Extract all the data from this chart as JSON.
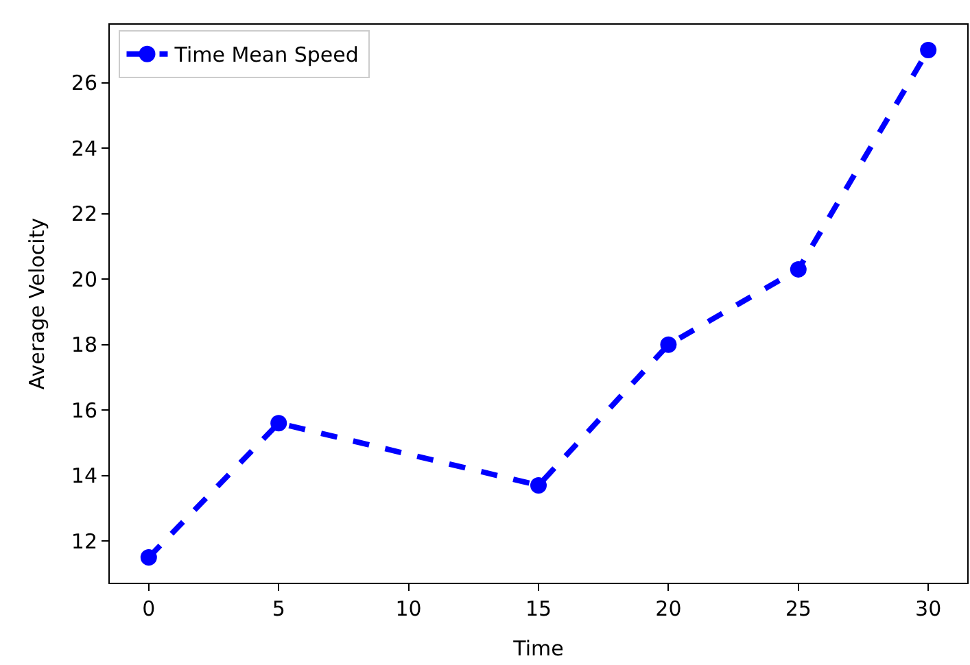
{
  "chart_data": {
    "type": "line",
    "xlabel": "Time",
    "ylabel": "Average Velocity",
    "x": [
      0,
      5,
      15,
      20,
      25,
      30
    ],
    "series": [
      {
        "name": "Time Mean Speed",
        "color": "#0000ff",
        "values": [
          11.5,
          15.6,
          13.7,
          18.0,
          20.3,
          27.0
        ]
      }
    ],
    "xlim": [
      -1.5,
      31.5
    ],
    "xticks": [
      0,
      5,
      10,
      15,
      20,
      25,
      30
    ],
    "ylim": [
      10.725,
      27.775
    ],
    "yticks": [
      12,
      14,
      16,
      18,
      20,
      22,
      24,
      26
    ],
    "legend": "top left",
    "marker": "circle",
    "line_style": "dashed"
  }
}
